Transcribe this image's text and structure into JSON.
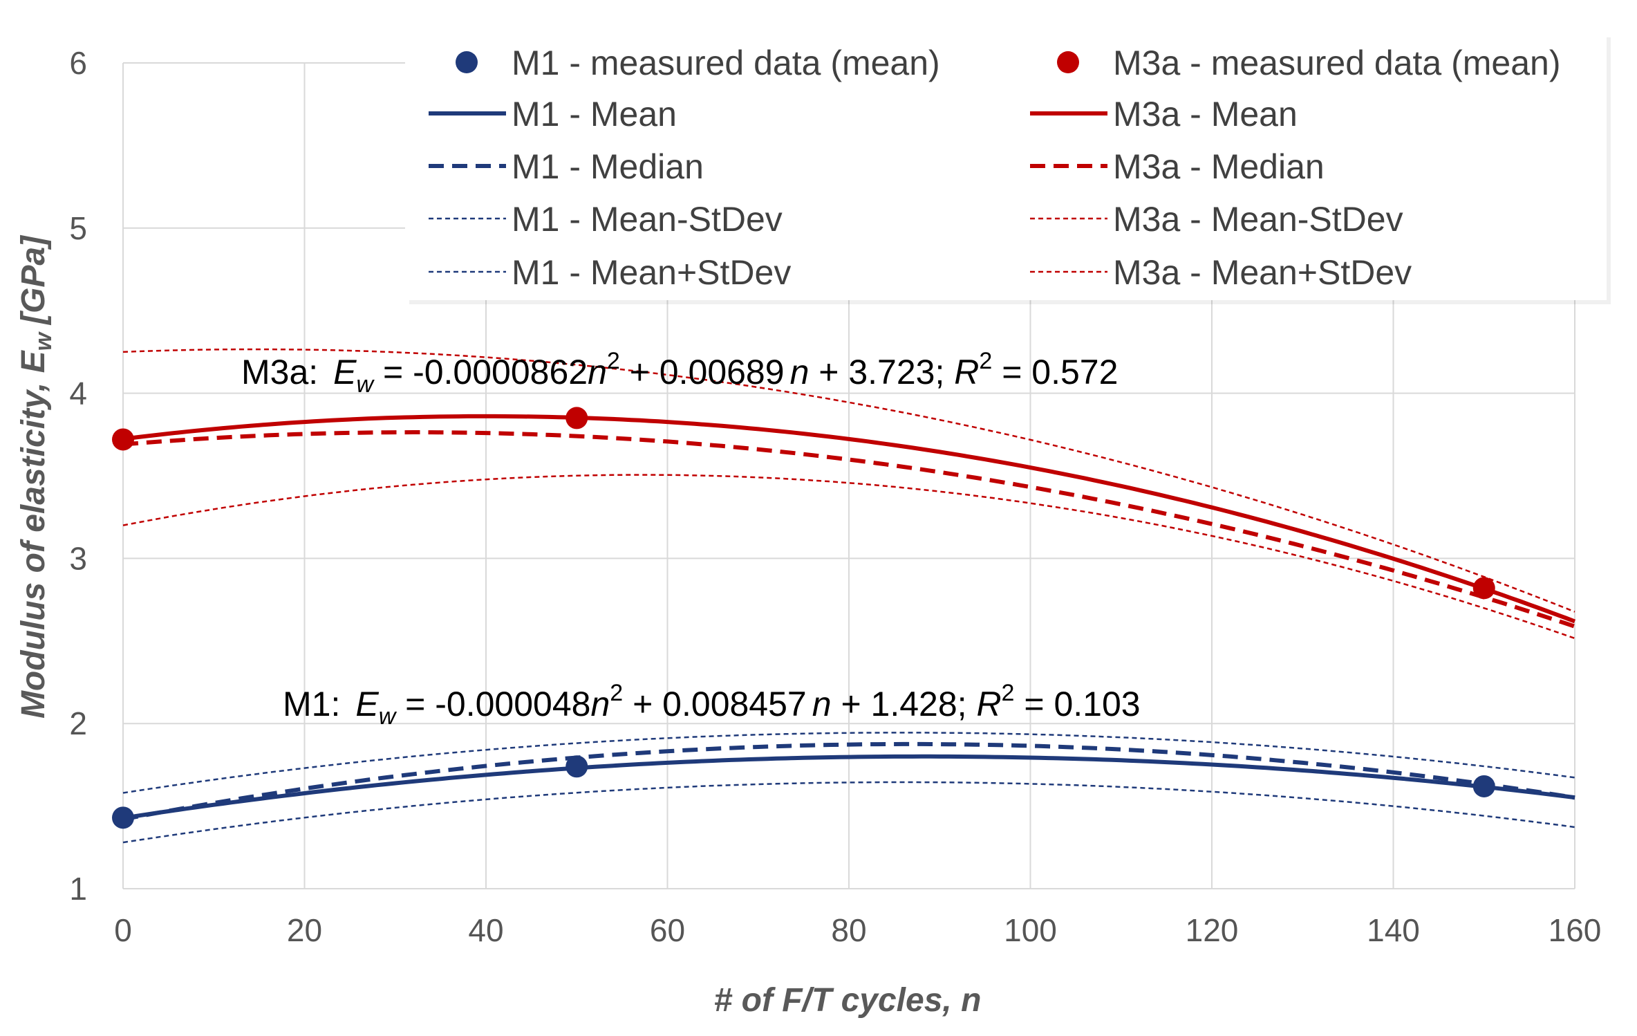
{
  "chart_data": {
    "type": "line",
    "title": "",
    "xlabel": "# of F/T cycles, n",
    "ylabel_main": "Modulus of elasticity, E",
    "ylabel_sub": "w",
    "ylabel_unit": "[GPa]",
    "xlim": [
      0,
      160
    ],
    "ylim": [
      1,
      6
    ],
    "x_ticks": [
      0,
      20,
      40,
      60,
      80,
      100,
      120,
      140,
      160
    ],
    "y_ticks": [
      1,
      2,
      3,
      4,
      5,
      6
    ],
    "grid": true,
    "legend_position": "top-right",
    "colors": {
      "M1": "#1f3a7a",
      "M3a": "#c00000"
    },
    "series": [
      {
        "name": "M1 - measured data (mean)",
        "group": "M1",
        "kind": "markers",
        "x": [
          0,
          50,
          150
        ],
        "y": [
          1.43,
          1.74,
          1.62
        ]
      },
      {
        "name": "M1 - Mean",
        "group": "M1",
        "kind": "mean",
        "coefficients": [
          1.428,
          0.008457,
          -4.8e-05
        ]
      },
      {
        "name": "M1 - Median",
        "group": "M1",
        "kind": "median",
        "coefficients": [
          1.42,
          0.0105,
          -6.05e-05
        ]
      },
      {
        "name": "M1 - Mean-StDev",
        "group": "M1",
        "kind": "stdev",
        "coefficients": [
          1.28,
          0.0085,
          -4.95e-05
        ]
      },
      {
        "name": "M1 - Mean+StDev",
        "group": "M1",
        "kind": "stdev",
        "coefficients": [
          1.58,
          0.0085,
          -4.95e-05
        ]
      },
      {
        "name": "M3a - measured data (mean)",
        "group": "M3a",
        "kind": "markers",
        "x": [
          0,
          50,
          150
        ],
        "y": [
          3.72,
          3.85,
          2.82
        ]
      },
      {
        "name": "M3a - Mean",
        "group": "M3a",
        "kind": "mean",
        "coefficients": [
          3.723,
          0.00689,
          -8.62e-05
        ]
      },
      {
        "name": "M3a - Median",
        "group": "M3a",
        "kind": "median",
        "coefficients": [
          3.69,
          0.0046,
          -7.18e-05
        ]
      },
      {
        "name": "M3a - Mean-StDev",
        "group": "M3a",
        "kind": "stdev",
        "coefficients": [
          3.2,
          0.0107,
          -9.36e-05
        ]
      },
      {
        "name": "M3a - Mean+StDev",
        "group": "M3a",
        "kind": "stdev",
        "coefficients": [
          4.25,
          0.0022,
          -7.52e-05
        ]
      }
    ],
    "equations": [
      {
        "label": "M3a:",
        "E": "E",
        "sub": "w",
        "part1": " = -0.0000862",
        "n1": "n",
        "sup1": "2",
        "part2": " + 0.00689",
        "n2": "n",
        "part3": " + 3.723; ",
        "R": "R",
        "sup2": "2",
        "part4": " = 0.572"
      },
      {
        "label": "M1:",
        "E": "E",
        "sub": "w",
        "part1": " = -0.000048",
        "n1": "n",
        "sup1": "2",
        "part2": " + 0.008457",
        "n2": "n",
        "part3": " + 1.428; ",
        "R": "R",
        "sup2": "2",
        "part4": " = 0.103"
      }
    ]
  }
}
